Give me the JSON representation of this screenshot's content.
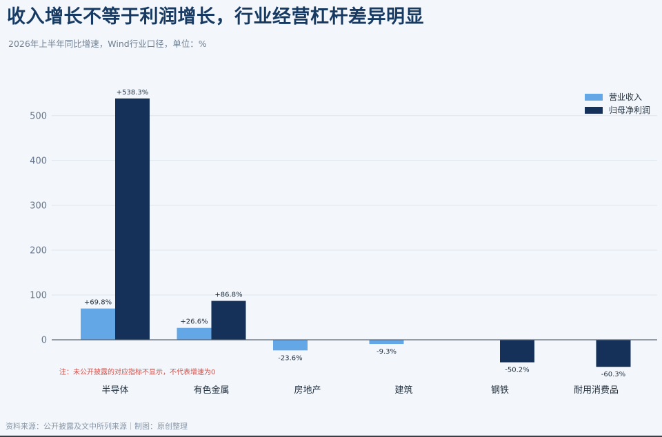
{
  "header": {
    "title": "收入增长不等于利润增长，行业经营杠杆差异明显",
    "subtitle": "2026年上半年同比增速，Wind行业口径，单位：%"
  },
  "footer": {
    "source": "资料来源：公开披露及文中所列来源｜制图：原创整理"
  },
  "colors": {
    "revenue": "#64a7e6",
    "profit": "#15315a"
  },
  "chart_data": {
    "type": "bar",
    "categories": [
      "半导体",
      "有色金属",
      "房地产",
      "建筑",
      "钢铁",
      "耐用消费品"
    ],
    "series": [
      {
        "name": "营业收入",
        "values": [
          69.8,
          26.6,
          -23.6,
          -9.3,
          null,
          null
        ],
        "labels": [
          "+69.8%",
          "+26.6%",
          "-23.6%",
          "-9.3%",
          null,
          null
        ]
      },
      {
        "name": "归母净利润",
        "values": [
          538.3,
          86.8,
          null,
          null,
          -50.2,
          -60.3
        ],
        "labels": [
          "+538.3%",
          "+86.8%",
          null,
          null,
          "-50.2%",
          "-60.3%"
        ]
      }
    ],
    "yticks": [
      0,
      100,
      200,
      300,
      400,
      500
    ],
    "ylim": [
      -65,
      570
    ],
    "grid": true,
    "legend_position": "top-right",
    "annotation": "注：未公开披露的对应指标不显示，不代表增速为0"
  }
}
